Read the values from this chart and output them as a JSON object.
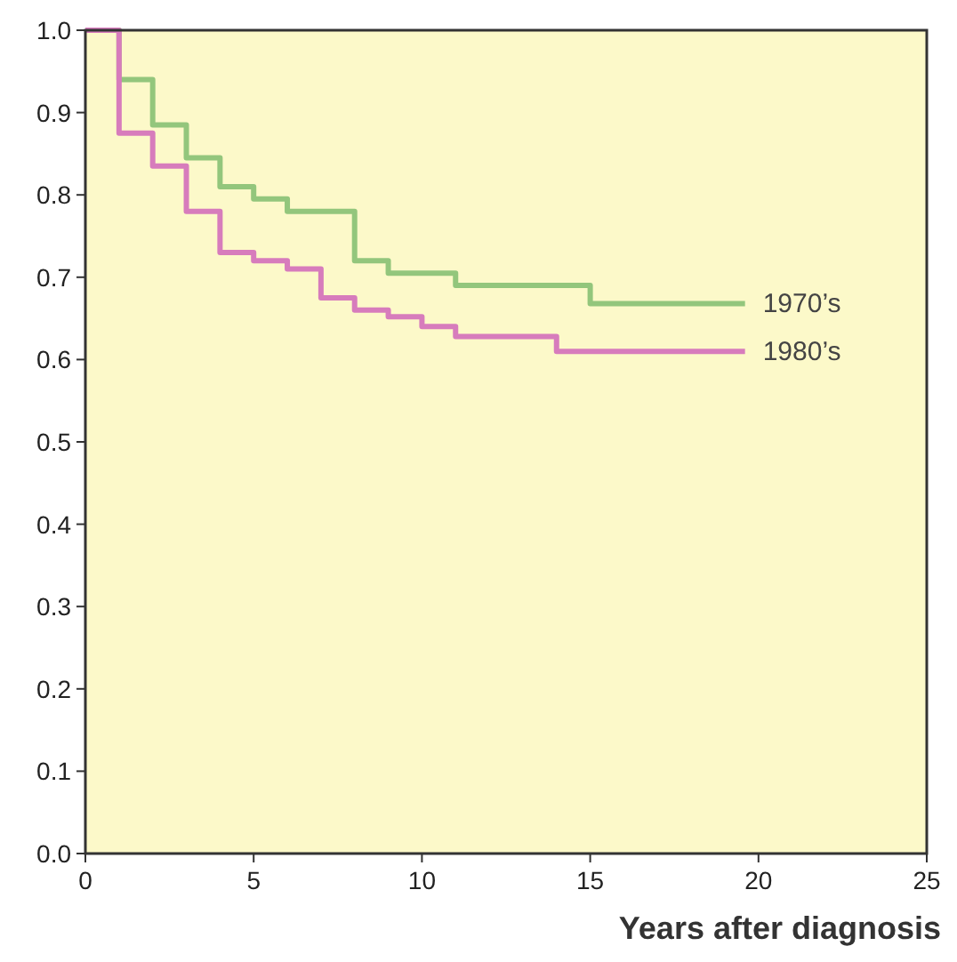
{
  "chart_data": {
    "type": "step",
    "xlabel": "Years after diagnosis",
    "xlim": [
      0,
      25
    ],
    "xticks": [
      0,
      5,
      10,
      15,
      20,
      25
    ],
    "ylim": [
      0,
      1
    ],
    "yticks": [
      {
        "value": 0,
        "label": "0.0"
      },
      {
        "value": 0.1,
        "label": "0.1"
      },
      {
        "value": 0.2,
        "label": "0.2"
      },
      {
        "value": 0.3,
        "label": "0.3"
      },
      {
        "value": 0.4,
        "label": "0.4"
      },
      {
        "value": 0.5,
        "label": "0.5"
      },
      {
        "value": 0.6,
        "label": "0.6"
      },
      {
        "value": 0.7,
        "label": "0.7"
      },
      {
        "value": 0.8,
        "label": "0.8"
      },
      {
        "value": 0.9,
        "label": "0.9"
      },
      {
        "value": 1,
        "label": "1.0"
      }
    ],
    "grid": false,
    "series": [
      {
        "name": "1970’s",
        "color": "#93c67c",
        "x": [
          0,
          1,
          2,
          3,
          4,
          5,
          6,
          8,
          9,
          11,
          15,
          19.6
        ],
        "values": [
          1,
          0.94,
          0.885,
          0.845,
          0.81,
          0.795,
          0.78,
          0.72,
          0.705,
          0.69,
          0.668,
          0.668
        ]
      },
      {
        "name": "1980’s",
        "color": "#d77cbc",
        "x": [
          0,
          1,
          2,
          3,
          4,
          5,
          6,
          7,
          8,
          9,
          10,
          11,
          14,
          19.6
        ],
        "values": [
          1,
          0.875,
          0.835,
          0.78,
          0.73,
          0.72,
          0.71,
          0.675,
          0.66,
          0.652,
          0.64,
          0.628,
          0.61,
          0.61
        ]
      }
    ]
  }
}
